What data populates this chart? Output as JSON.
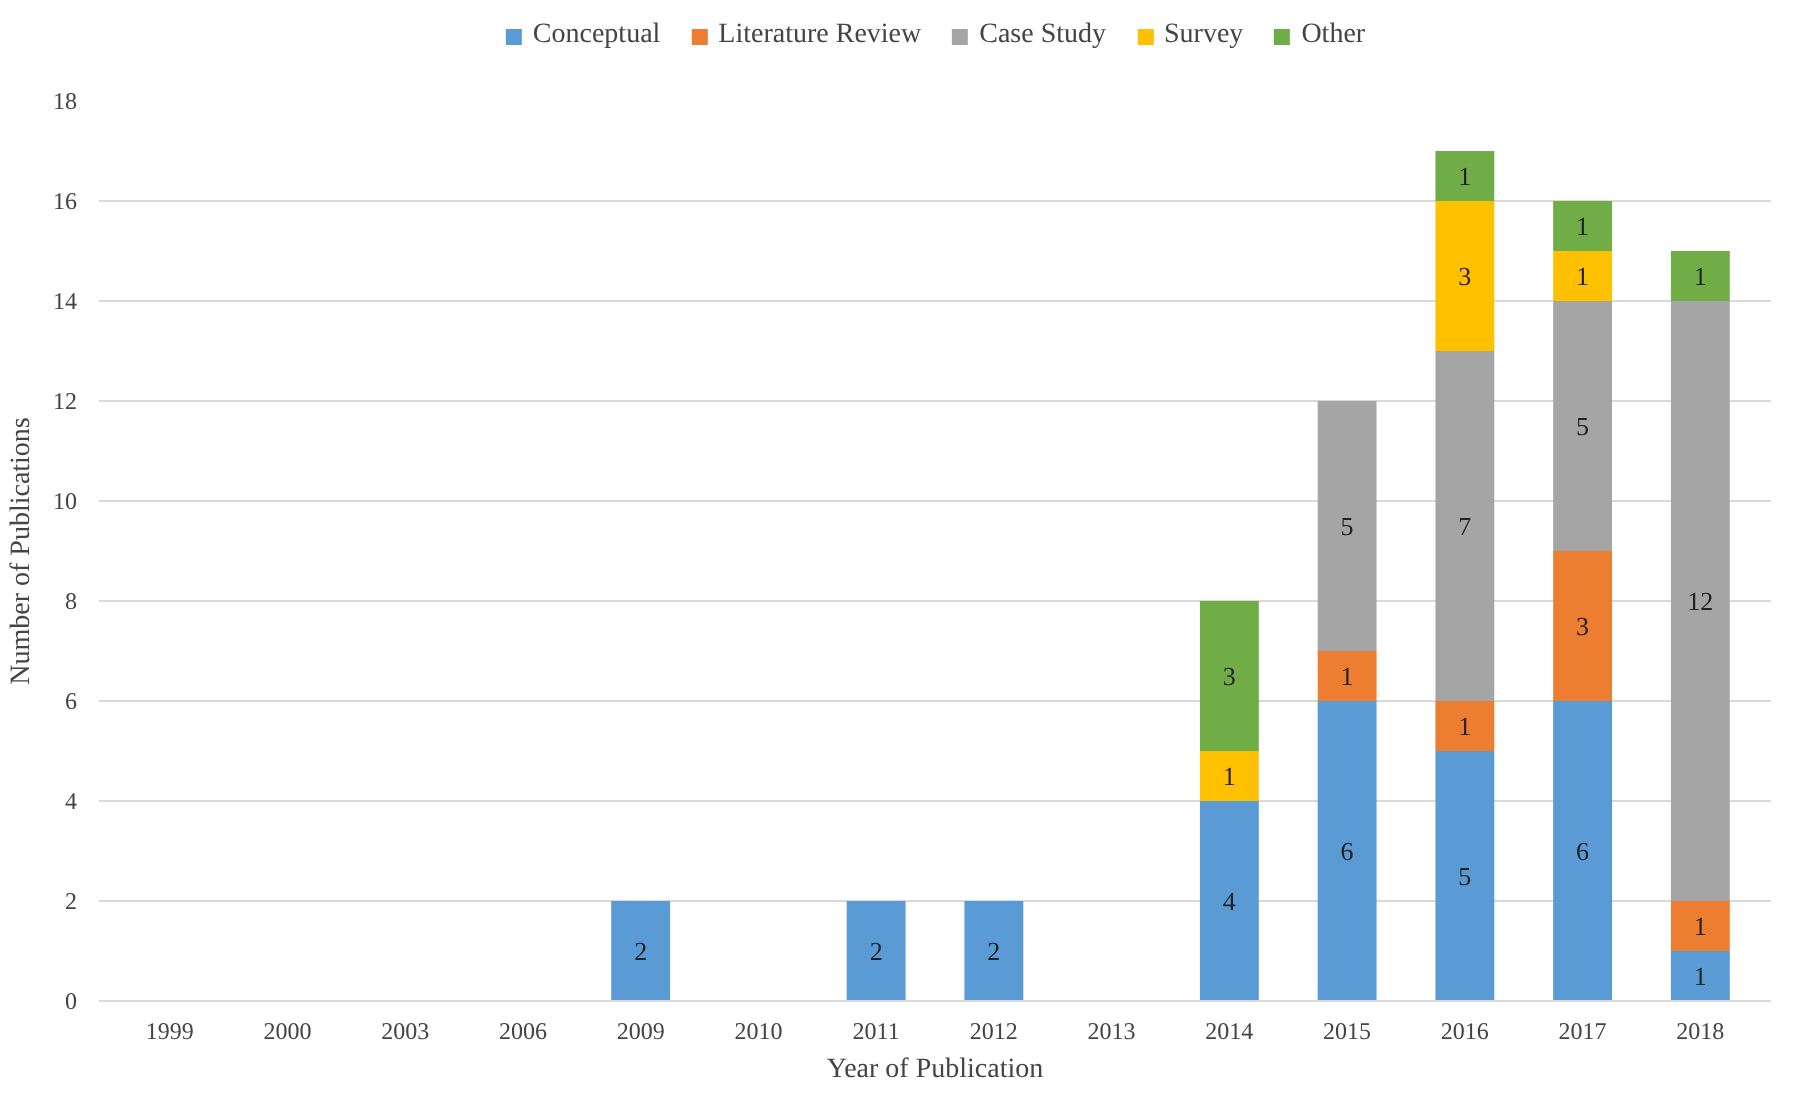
{
  "chart_data": {
    "type": "bar",
    "stacked": true,
    "xlabel": "Year of Publication",
    "ylabel": "Number of Publications",
    "categories": [
      "1999",
      "2000",
      "2003",
      "2006",
      "2009",
      "2010",
      "2011",
      "2012",
      "2013",
      "2014",
      "2015",
      "2016",
      "2017",
      "2018"
    ],
    "series": [
      {
        "name": "Conceptual",
        "color": "#5b9bd5",
        "values": [
          null,
          null,
          null,
          null,
          2,
          null,
          2,
          2,
          null,
          4,
          6,
          5,
          6,
          1
        ]
      },
      {
        "name": "Literature Review",
        "color": "#ed7d31",
        "values": [
          null,
          null,
          null,
          null,
          null,
          null,
          null,
          null,
          null,
          null,
          1,
          1,
          3,
          1
        ]
      },
      {
        "name": "Case Study",
        "color": "#a5a5a5",
        "values": [
          null,
          null,
          null,
          null,
          null,
          null,
          null,
          null,
          null,
          null,
          5,
          7,
          5,
          12
        ]
      },
      {
        "name": "Survey",
        "color": "#ffc000",
        "values": [
          null,
          null,
          null,
          null,
          null,
          null,
          null,
          null,
          null,
          1,
          null,
          3,
          1,
          null
        ]
      },
      {
        "name": "Other",
        "color": "#70ad47",
        "values": [
          null,
          null,
          null,
          null,
          null,
          null,
          null,
          null,
          null,
          3,
          null,
          1,
          1,
          1
        ]
      }
    ],
    "ylim": [
      0,
      18
    ],
    "yticks": [
      0,
      2,
      4,
      6,
      8,
      10,
      12,
      14,
      16,
      18
    ],
    "grid": "y",
    "legend": "top",
    "data_labels": true
  }
}
